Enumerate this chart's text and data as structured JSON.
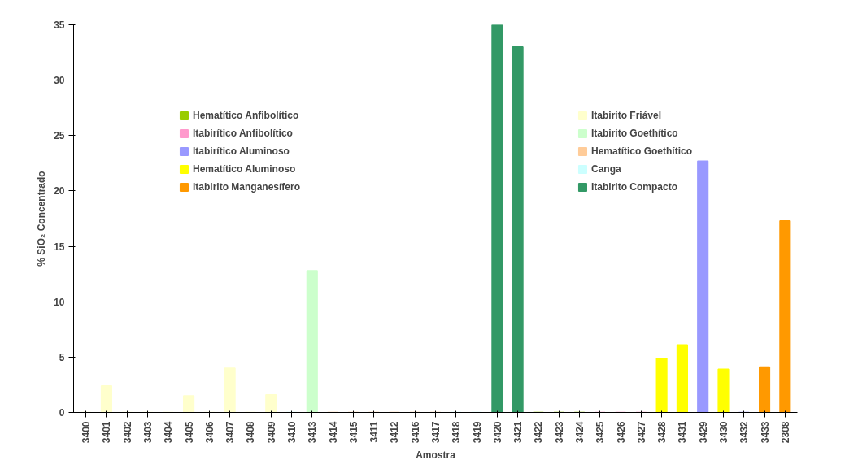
{
  "chart_data": {
    "type": "bar",
    "xlabel": "Amostra",
    "ylabel": "% SiO₂ Concentrado",
    "categories": [
      "3400",
      "3401",
      "3402",
      "3403",
      "3404",
      "3405",
      "3406",
      "3407",
      "3408",
      "3409",
      "3410",
      "3413",
      "3414",
      "3415",
      "3411",
      "3412",
      "3416",
      "3417",
      "3418",
      "3419",
      "3420",
      "3421",
      "3422",
      "3423",
      "3424",
      "3425",
      "3426",
      "3427",
      "3428",
      "3431",
      "3429",
      "3430",
      "3432",
      "3433",
      "2308"
    ],
    "series": [
      {
        "name": "Hematítico Anfibolítico",
        "color": "#99cc00",
        "values": [
          null,
          null,
          null,
          null,
          null,
          null,
          null,
          null,
          null,
          null,
          null,
          null,
          null,
          null,
          null,
          null,
          null,
          null,
          null,
          null,
          null,
          null,
          0,
          0,
          0,
          null,
          null,
          null,
          null,
          null,
          null,
          null,
          null,
          null,
          null
        ]
      },
      {
        "name": "Itabirítico Anfibolítico",
        "color": "#ff99cc",
        "values": [
          null,
          null,
          null,
          null,
          null,
          null,
          null,
          null,
          null,
          null,
          null,
          null,
          null,
          null,
          null,
          null,
          null,
          null,
          null,
          null,
          null,
          null,
          null,
          null,
          null,
          0,
          0,
          0,
          null,
          null,
          null,
          null,
          null,
          null,
          null
        ]
      },
      {
        "name": "Itabirítico Aluminoso",
        "color": "#9999ff",
        "values": [
          null,
          null,
          null,
          null,
          null,
          null,
          null,
          null,
          null,
          null,
          null,
          null,
          null,
          null,
          null,
          null,
          null,
          null,
          null,
          null,
          null,
          null,
          null,
          null,
          null,
          null,
          null,
          null,
          null,
          null,
          22.7,
          null,
          0,
          null,
          null
        ]
      },
      {
        "name": "Hematítico Aluminoso",
        "color": "#ffff00",
        "values": [
          null,
          null,
          null,
          null,
          null,
          null,
          null,
          null,
          null,
          null,
          null,
          null,
          null,
          null,
          null,
          null,
          null,
          null,
          null,
          null,
          null,
          null,
          null,
          null,
          null,
          null,
          null,
          null,
          4.9,
          6.1,
          null,
          3.9,
          null,
          null,
          null
        ]
      },
      {
        "name": "Itabirito Manganesífero",
        "color": "#ff9900",
        "values": [
          null,
          null,
          null,
          null,
          null,
          null,
          null,
          null,
          null,
          null,
          null,
          null,
          null,
          null,
          null,
          null,
          null,
          null,
          null,
          null,
          null,
          null,
          null,
          null,
          null,
          null,
          null,
          null,
          null,
          null,
          null,
          null,
          null,
          4.1,
          17.3
        ]
      },
      {
        "name": "Itabirito Friável",
        "color": "#ffffcc",
        "values": [
          0,
          2.4,
          0,
          0,
          0,
          1.5,
          0,
          4.0,
          0,
          1.6,
          null,
          null,
          null,
          null,
          null,
          null,
          null,
          null,
          null,
          null,
          null,
          null,
          null,
          null,
          null,
          null,
          null,
          null,
          null,
          null,
          null,
          null,
          null,
          null,
          null
        ]
      },
      {
        "name": "Itabirito Goethítico",
        "color": "#ccffcc",
        "values": [
          null,
          null,
          null,
          null,
          null,
          null,
          null,
          null,
          null,
          null,
          null,
          12.8,
          null,
          null,
          null,
          null,
          null,
          null,
          null,
          null,
          null,
          null,
          null,
          null,
          null,
          null,
          null,
          null,
          null,
          null,
          null,
          null,
          null,
          null,
          null
        ]
      },
      {
        "name": "Hematítico Goethítico",
        "color": "#ffcc99",
        "values": [
          null,
          null,
          null,
          null,
          null,
          null,
          null,
          null,
          null,
          null,
          null,
          null,
          0,
          0,
          0,
          0,
          0,
          0,
          null,
          null,
          null,
          null,
          null,
          null,
          null,
          null,
          null,
          null,
          null,
          null,
          null,
          null,
          null,
          null,
          null
        ]
      },
      {
        "name": "Canga",
        "color": "#ccffff",
        "values": [
          null,
          null,
          null,
          null,
          null,
          null,
          null,
          null,
          null,
          null,
          0,
          null,
          null,
          null,
          null,
          null,
          null,
          null,
          0,
          0,
          null,
          null,
          null,
          null,
          null,
          null,
          null,
          null,
          null,
          null,
          null,
          null,
          null,
          null,
          null
        ]
      },
      {
        "name": "Itabirito Compacto",
        "color": "#339966",
        "values": [
          null,
          null,
          null,
          null,
          null,
          null,
          null,
          null,
          null,
          null,
          null,
          null,
          null,
          null,
          null,
          null,
          null,
          null,
          null,
          null,
          35.0,
          33.0,
          null,
          null,
          null,
          null,
          null,
          null,
          null,
          null,
          null,
          null,
          null,
          null,
          null
        ]
      }
    ],
    "ylim": [
      0,
      35
    ],
    "yticks": [
      0,
      5,
      10,
      15,
      20,
      25,
      30,
      35
    ],
    "grid": false,
    "legend": "top"
  }
}
